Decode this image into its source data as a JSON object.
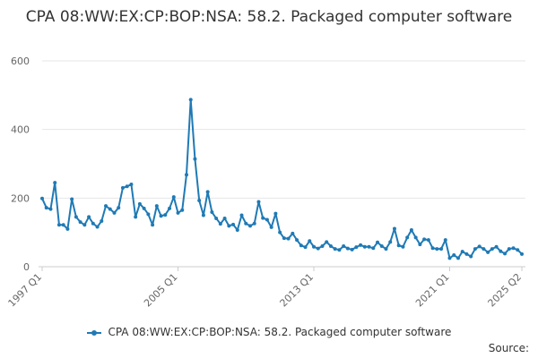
{
  "chart_data": {
    "type": "line",
    "title": "CPA 08:WW:EX:CP:BOP:NSA: 58.2. Packaged computer software",
    "xlabel": "",
    "ylabel": "",
    "ylim": [
      0,
      600
    ],
    "yticks": [
      0,
      200,
      400,
      600
    ],
    "x_tick_labels": [
      "1997 Q1",
      "2005 Q1",
      "2013 Q1",
      "2021 Q1",
      "2025 Q2"
    ],
    "x_start": "1997 Q1",
    "x_end": "2025 Q2",
    "grid": true,
    "legend_position": "bottom",
    "series": [
      {
        "name": "CPA 08:WW:EX:CP:BOP:NSA: 58.2. Packaged computer software",
        "color": "#1f7ab5",
        "values": [
          199,
          172,
          168,
          245,
          122,
          122,
          110,
          197,
          145,
          130,
          122,
          145,
          126,
          116,
          133,
          177,
          168,
          157,
          172,
          230,
          234,
          240,
          145,
          183,
          170,
          153,
          122,
          177,
          148,
          151,
          170,
          203,
          157,
          165,
          268,
          487,
          314,
          193,
          150,
          218,
          159,
          141,
          125,
          141,
          119,
          123,
          107,
          150,
          126,
          119,
          126,
          189,
          142,
          137,
          115,
          155,
          100,
          83,
          82,
          97,
          78,
          62,
          57,
          75,
          58,
          53,
          60,
          72,
          60,
          52,
          49,
          60,
          53,
          50,
          57,
          63,
          58,
          58,
          54,
          71,
          60,
          52,
          72,
          111,
          62,
          58,
          85,
          107,
          85,
          65,
          80,
          78,
          54,
          52,
          52,
          78,
          25,
          34,
          25,
          44,
          37,
          30,
          52,
          59,
          52,
          42,
          52,
          58,
          45,
          38,
          52,
          54,
          49,
          37
        ]
      }
    ]
  },
  "footer": {
    "source_label": "Source:"
  }
}
